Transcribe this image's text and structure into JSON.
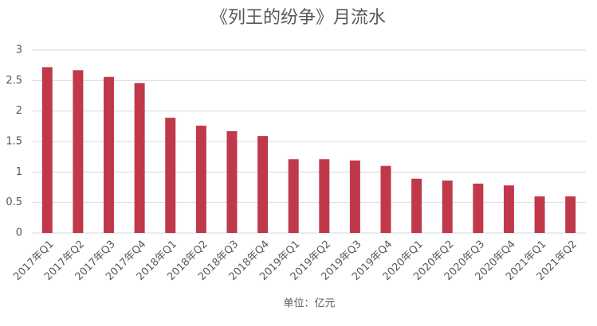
{
  "chart_data": {
    "type": "bar",
    "title": "《列王的纷争》月流水",
    "x_label": "单位：亿元",
    "categories": [
      "2017年Q1",
      "2017年Q2",
      "2017年Q3",
      "2017年Q4",
      "2018年Q1",
      "2018年Q2",
      "2018年Q3",
      "2018年Q4",
      "2019年Q1",
      "2019年Q2",
      "2019年Q3",
      "2019年Q4",
      "2020年Q1",
      "2020年Q2",
      "2020年Q3",
      "2020年Q4",
      "2021年Q1",
      "2021年Q2"
    ],
    "values": [
      2.72,
      2.67,
      2.56,
      2.46,
      1.89,
      1.76,
      1.67,
      1.59,
      1.21,
      1.21,
      1.19,
      1.1,
      0.89,
      0.86,
      0.81,
      0.78,
      0.6,
      0.6
    ],
    "color": "#c0394a",
    "ylim": [
      0,
      3
    ],
    "yticks": [
      0,
      0.5,
      1,
      1.5,
      2,
      2.5,
      3
    ],
    "grid": true
  }
}
